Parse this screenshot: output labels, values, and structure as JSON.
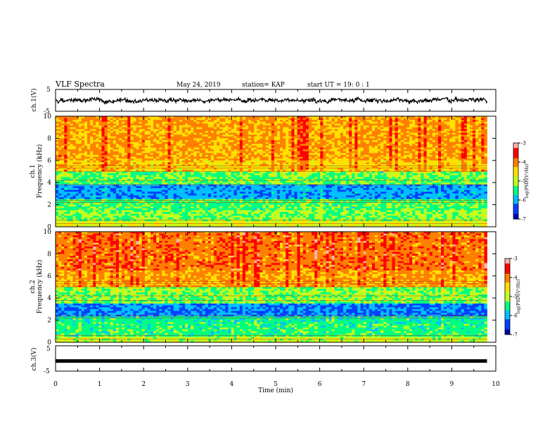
{
  "header": {
    "title": "VLF Spectra",
    "date": "May 24, 2019",
    "station": "station= KAP",
    "start": "start  UT =   19: 0  : 1"
  },
  "chart_data": [
    {
      "type": "line",
      "panel": "ch1-waveform",
      "ylabel": "ch.1(V)",
      "xlabel": "",
      "ylim": [
        -5,
        5
      ],
      "yticks": [
        "5",
        "-5"
      ],
      "xlim": [
        0,
        10
      ],
      "series_description": "noisy waveform fluctuating roughly between -1.5 V and 1.5 V, data ends near 9.8 min"
    },
    {
      "type": "heatmap",
      "panel": "ch1-spectrogram",
      "ylabel": "ch.1\nFrequency  (kHz)",
      "ylim": [
        0,
        10
      ],
      "yticks": [
        "0",
        "2",
        "4",
        "6",
        "8",
        "10"
      ],
      "xlim": [
        0,
        10
      ],
      "data_end_min": 9.8,
      "band_profile": [
        {
          "f_lo": 0.0,
          "f_hi": 0.5,
          "level": 0.55
        },
        {
          "f_lo": 0.5,
          "f_hi": 1.5,
          "level": 0.45
        },
        {
          "f_lo": 1.5,
          "f_hi": 2.5,
          "level": 0.4
        },
        {
          "f_lo": 2.5,
          "f_hi": 3.8,
          "level": 0.22
        },
        {
          "f_lo": 3.8,
          "f_hi": 5.0,
          "level": 0.42
        },
        {
          "f_lo": 5.0,
          "f_hi": 6.0,
          "level": 0.64
        },
        {
          "f_lo": 6.0,
          "f_hi": 10.0,
          "level": 0.7
        }
      ],
      "colorbar": {
        "label": "log(PSD)(V²/Hz)",
        "range": [
          -7,
          -3
        ],
        "ticks": [
          "-3",
          "-4",
          "-5",
          "-6",
          "-7"
        ]
      }
    },
    {
      "type": "heatmap",
      "panel": "ch2-spectrogram",
      "ylabel": "ch.2\nFrequency  (kHz)",
      "ylim": [
        0,
        10
      ],
      "yticks": [
        "0",
        "2",
        "4",
        "6",
        "8",
        "10"
      ],
      "xlim": [
        0,
        10
      ],
      "data_end_min": 9.8,
      "band_profile": [
        {
          "f_lo": 0.0,
          "f_hi": 0.5,
          "level": 0.5
        },
        {
          "f_lo": 0.5,
          "f_hi": 1.8,
          "level": 0.38
        },
        {
          "f_lo": 1.8,
          "f_hi": 2.4,
          "level": 0.35
        },
        {
          "f_lo": 2.4,
          "f_hi": 3.5,
          "level": 0.18
        },
        {
          "f_lo": 3.5,
          "f_hi": 5.0,
          "level": 0.45
        },
        {
          "f_lo": 5.0,
          "f_hi": 6.5,
          "level": 0.7
        },
        {
          "f_lo": 6.5,
          "f_hi": 10.0,
          "level": 0.76
        }
      ],
      "colorbar": {
        "label": "log(PSD)(V²/Hz)",
        "range": [
          -7,
          -3
        ],
        "ticks": [
          "-3",
          "-4",
          "-5",
          "-6",
          "-7"
        ]
      }
    },
    {
      "type": "line",
      "panel": "ch3-waveform",
      "ylabel": "ch.3(V)",
      "xlabel": "Time  (min)",
      "ylim": [
        -5,
        5
      ],
      "yticks": [
        "5",
        "-5"
      ],
      "xlim": [
        0,
        10
      ],
      "xticks": [
        "0",
        "1",
        "2",
        "3",
        "4",
        "5",
        "6",
        "7",
        "8",
        "9",
        "10"
      ],
      "constant_value": -1,
      "series_description": "flat line at about -1 V"
    }
  ],
  "colors": {
    "background": "#ffffff",
    "axis": "#000000",
    "colormap": [
      "#0000b0",
      "#0040ff",
      "#00c0ff",
      "#00ff80",
      "#c0ff20",
      "#ffe000",
      "#ff8000",
      "#ff0000",
      "#ffb0b0"
    ]
  }
}
